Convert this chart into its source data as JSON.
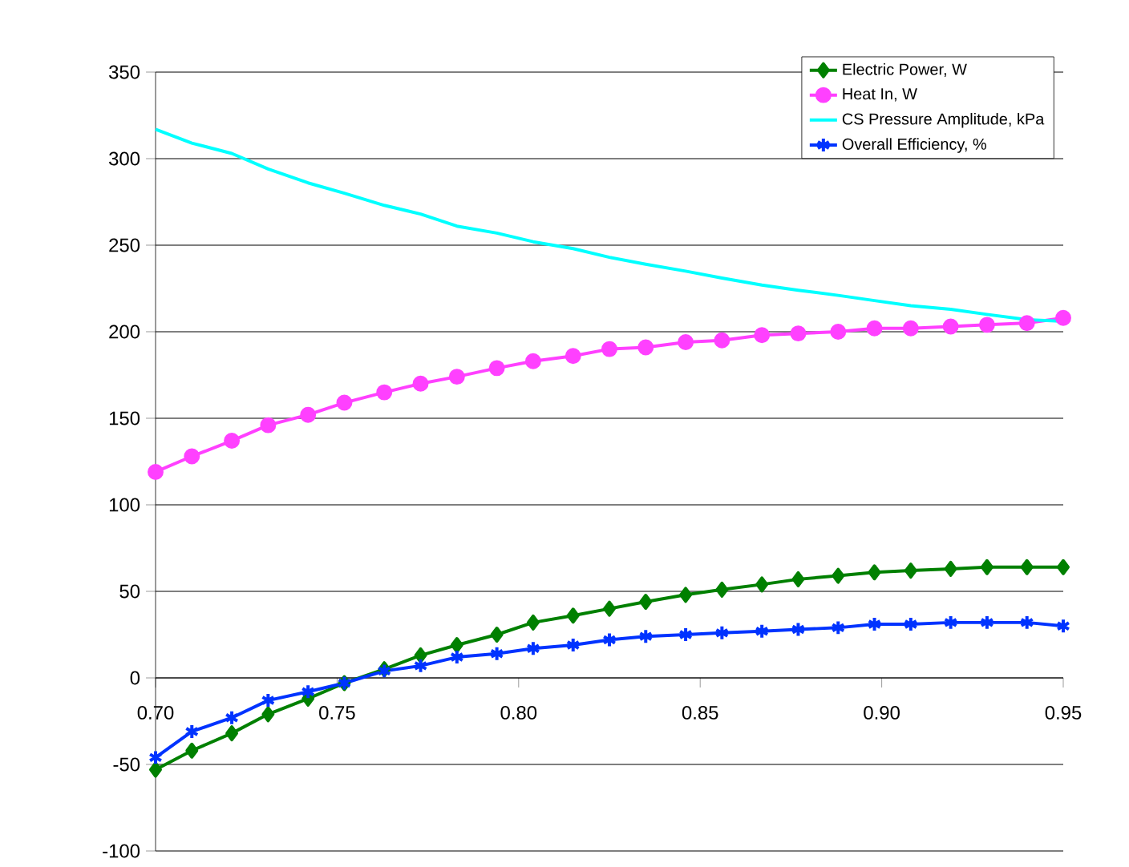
{
  "chart_data": {
    "type": "line",
    "x": [
      0.7,
      0.71,
      0.721,
      0.731,
      0.742,
      0.752,
      0.763,
      0.773,
      0.783,
      0.794,
      0.804,
      0.815,
      0.825,
      0.835,
      0.846,
      0.856,
      0.867,
      0.877,
      0.888,
      0.898,
      0.908,
      0.919,
      0.929,
      0.94,
      0.95
    ],
    "series": [
      {
        "name": "Electric Power, W",
        "color": "#008000",
        "marker": "diamond",
        "values": [
          -53,
          -42,
          -32,
          -21,
          -12,
          -3,
          5,
          13,
          19,
          25,
          32,
          36,
          40,
          44,
          48,
          51,
          54,
          57,
          59,
          61,
          62,
          63,
          64,
          64,
          64
        ]
      },
      {
        "name": "Heat In, W",
        "color": "#ff40ff",
        "marker": "circle",
        "values": [
          119,
          128,
          137,
          146,
          152,
          159,
          165,
          170,
          174,
          179,
          183,
          186,
          190,
          191,
          194,
          195,
          198,
          199,
          200,
          202,
          202,
          203,
          204,
          205,
          208
        ]
      },
      {
        "name": "CS Pressure Amplitude, kPa",
        "color": "#00ffff",
        "marker": "none",
        "values": [
          317,
          309,
          303,
          294,
          286,
          280,
          273,
          268,
          261,
          257,
          252,
          248,
          243,
          239,
          235,
          231,
          227,
          224,
          221,
          218,
          215,
          213,
          210,
          207,
          206
        ]
      },
      {
        "name": "Overall Efficiency, %",
        "color": "#0033ff",
        "marker": "cross",
        "values": [
          -46,
          -31,
          -23,
          -13,
          -8,
          -3,
          4,
          7,
          12,
          14,
          17,
          19,
          22,
          24,
          25,
          26,
          27,
          28,
          29,
          31,
          31,
          32,
          32,
          32,
          30
        ]
      }
    ],
    "xlim": [
      0.7,
      0.95
    ],
    "xticks": [
      {
        "value": 0.7,
        "label": "0.70"
      },
      {
        "value": 0.75,
        "label": "0.75"
      },
      {
        "value": 0.8,
        "label": "0.80"
      },
      {
        "value": 0.85,
        "label": "0.85"
      },
      {
        "value": 0.9,
        "label": "0.90"
      },
      {
        "value": 0.95,
        "label": "0.95"
      }
    ],
    "ylim": [
      -100,
      350
    ],
    "yticks": [
      -100,
      -50,
      0,
      50,
      100,
      150,
      200,
      250,
      300,
      350
    ],
    "grid": "y",
    "legend": "top right",
    "line_style": "solid"
  }
}
